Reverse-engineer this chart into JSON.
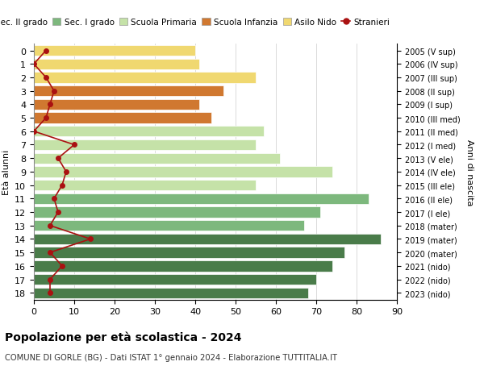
{
  "ages": [
    18,
    17,
    16,
    15,
    14,
    13,
    12,
    11,
    10,
    9,
    8,
    7,
    6,
    5,
    4,
    3,
    2,
    1,
    0
  ],
  "years": [
    "2005 (V sup)",
    "2006 (IV sup)",
    "2007 (III sup)",
    "2008 (II sup)",
    "2009 (I sup)",
    "2010 (III med)",
    "2011 (II med)",
    "2012 (I med)",
    "2013 (V ele)",
    "2014 (IV ele)",
    "2015 (III ele)",
    "2016 (II ele)",
    "2017 (I ele)",
    "2018 (mater)",
    "2019 (mater)",
    "2020 (mater)",
    "2021 (nido)",
    "2022 (nido)",
    "2023 (nido)"
  ],
  "bar_values": [
    68,
    70,
    74,
    77,
    86,
    67,
    71,
    83,
    55,
    74,
    61,
    55,
    57,
    44,
    41,
    47,
    55,
    41,
    40
  ],
  "bar_colors": [
    "#4a7c4a",
    "#4a7c4a",
    "#4a7c4a",
    "#4a7c4a",
    "#4a7c4a",
    "#7db87d",
    "#7db87d",
    "#7db87d",
    "#c5e2a8",
    "#c5e2a8",
    "#c5e2a8",
    "#c5e2a8",
    "#c5e2a8",
    "#d07830",
    "#d07830",
    "#d07830",
    "#f0d870",
    "#f0d870",
    "#f0d870"
  ],
  "stranieri": [
    4,
    4,
    7,
    4,
    14,
    4,
    6,
    5,
    7,
    8,
    6,
    10,
    0,
    3,
    4,
    5,
    3,
    0,
    3
  ],
  "legend_labels": [
    "Sec. II grado",
    "Sec. I grado",
    "Scuola Primaria",
    "Scuola Infanzia",
    "Asilo Nido",
    "Stranieri"
  ],
  "legend_colors": [
    "#4a7c4a",
    "#7db87d",
    "#c5e2a8",
    "#d07830",
    "#f0d870",
    "#aa1111"
  ],
  "ylabel": "Età alunni",
  "ylabel2": "Anni di nascita",
  "title": "Popolazione per età scolastica - 2024",
  "subtitle": "COMUNE DI GORLE (BG) - Dati ISTAT 1° gennaio 2024 - Elaborazione TUTTITALIA.IT",
  "xlim": [
    0,
    90
  ],
  "stranieri_color": "#aa1111",
  "bar_height": 0.8,
  "bg_color": "#ffffff",
  "grid_color": "#cccccc"
}
